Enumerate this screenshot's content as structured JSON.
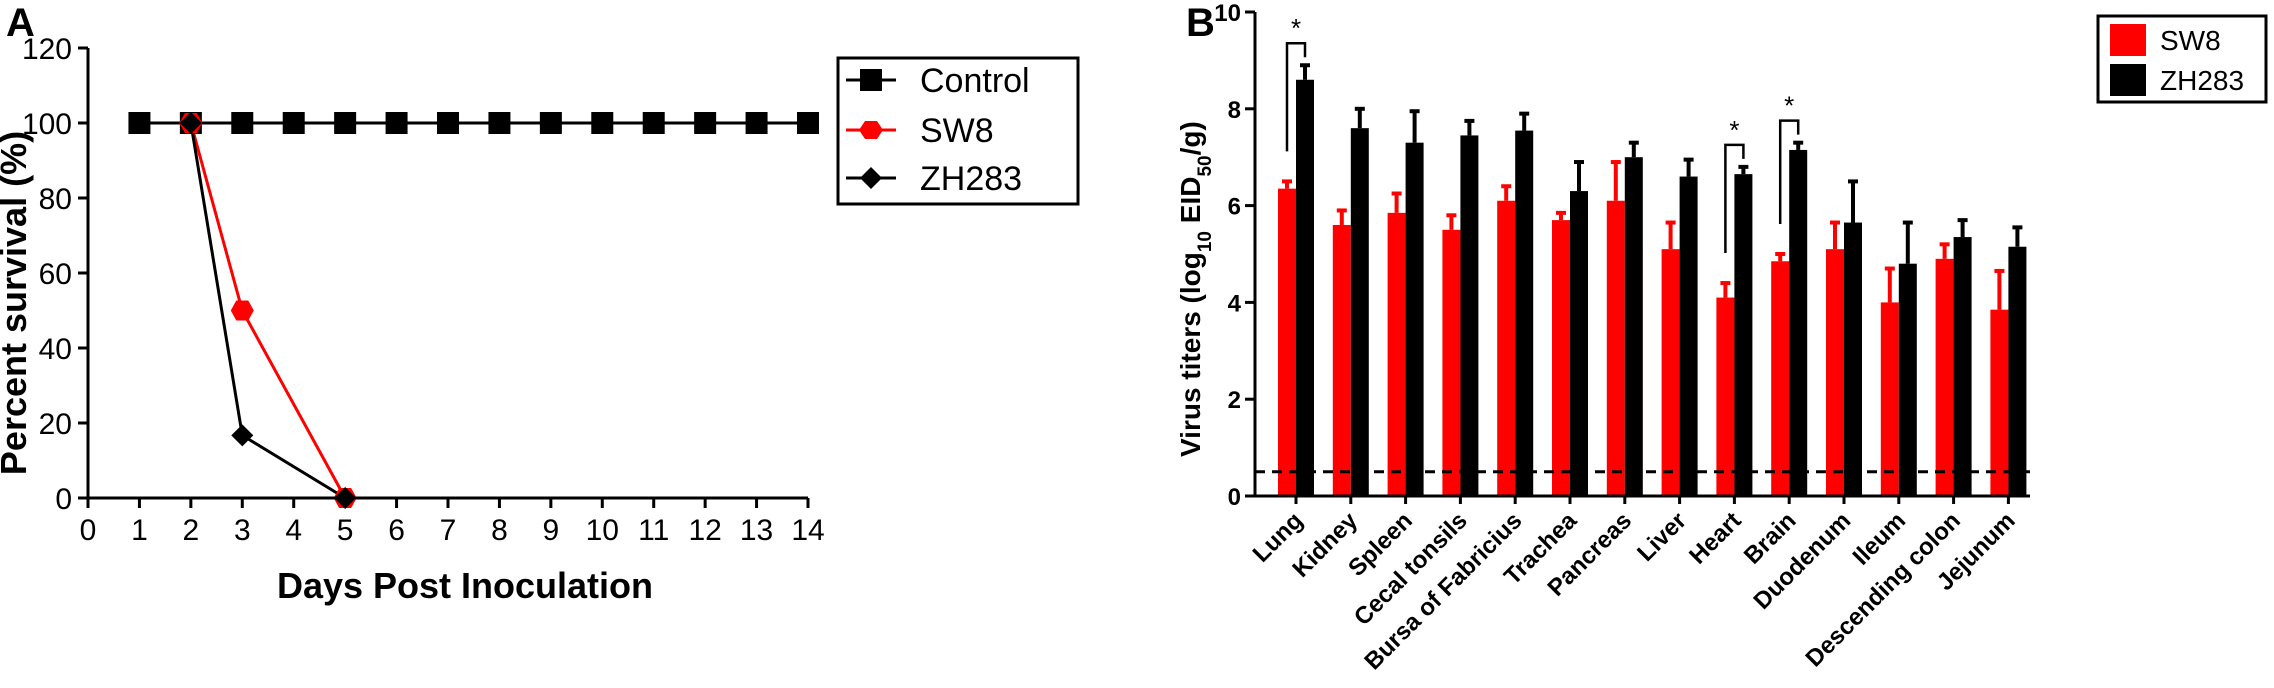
{
  "chart_data": [
    {
      "type": "line",
      "panel_label": "A",
      "xlabel": "Days Post Inoculation",
      "ylabel": "Percent survival (%)",
      "xlim": [
        0,
        14
      ],
      "ylim": [
        0,
        120
      ],
      "x_ticks": [
        "0",
        "1",
        "2",
        "3",
        "4",
        "5",
        "6",
        "7",
        "8",
        "9",
        "10",
        "11",
        "12",
        "13",
        "14"
      ],
      "y_ticks": [
        "0",
        "20",
        "40",
        "60",
        "80",
        "100",
        "120"
      ],
      "legend_position": "top-right",
      "series": [
        {
          "name": "Control",
          "color": "#000000",
          "marker": "square",
          "x": [
            1,
            2,
            3,
            4,
            5,
            6,
            7,
            8,
            9,
            10,
            11,
            12,
            13,
            14
          ],
          "y": [
            100,
            100,
            100,
            100,
            100,
            100,
            100,
            100,
            100,
            100,
            100,
            100,
            100,
            100
          ]
        },
        {
          "name": "SW8",
          "color": "#ff0000",
          "marker": "hexagon",
          "x": [
            2,
            3,
            5
          ],
          "y": [
            100,
            50,
            0
          ]
        },
        {
          "name": "ZH283",
          "color": "#000000",
          "marker": "diamond",
          "x": [
            2,
            3,
            5
          ],
          "y": [
            100,
            16.7,
            0
          ]
        }
      ]
    },
    {
      "type": "bar",
      "panel_label": "B",
      "ylabel_main": "Virus titers (log",
      "ylabel_sub": "10",
      "ylabel_mid": " EID",
      "ylabel_sub2": "50",
      "ylabel_end": "/g)",
      "ylim": [
        0,
        10
      ],
      "y_ticks": [
        "0",
        "2",
        "4",
        "6",
        "8",
        "10"
      ],
      "detection_limit": 0.5,
      "legend_position": "top-right",
      "categories": [
        "Lung",
        "Kidney",
        "Spleen",
        "Cecal tonsils",
        "Bursa of Fabricius",
        "Trachea",
        "Pancreas",
        "Liver",
        "Heart",
        "Brain",
        "Duodenum",
        "Ileum",
        "Descending colon",
        "Jejunum"
      ],
      "series": [
        {
          "name": "SW8",
          "color": "#ff0000",
          "values": [
            6.35,
            5.6,
            5.85,
            5.5,
            6.1,
            5.7,
            6.1,
            5.1,
            4.1,
            4.85,
            5.1,
            4.0,
            4.9,
            3.85
          ],
          "errors": [
            0.15,
            0.3,
            0.4,
            0.3,
            0.3,
            0.15,
            0.8,
            0.55,
            0.3,
            0.15,
            0.55,
            0.7,
            0.3,
            0.8
          ]
        },
        {
          "name": "ZH283",
          "color": "#000000",
          "values": [
            8.6,
            7.6,
            7.3,
            7.45,
            7.55,
            6.3,
            7.0,
            6.6,
            6.65,
            7.15,
            5.65,
            4.8,
            5.35,
            5.15
          ],
          "errors": [
            0.3,
            0.4,
            0.65,
            0.3,
            0.35,
            0.6,
            0.3,
            0.35,
            0.15,
            0.15,
            0.85,
            0.85,
            0.35,
            0.4
          ]
        }
      ],
      "significance": [
        {
          "category_index": 0,
          "label": "*"
        },
        {
          "category_index": 8,
          "label": "*"
        },
        {
          "category_index": 9,
          "label": "*"
        }
      ]
    }
  ]
}
